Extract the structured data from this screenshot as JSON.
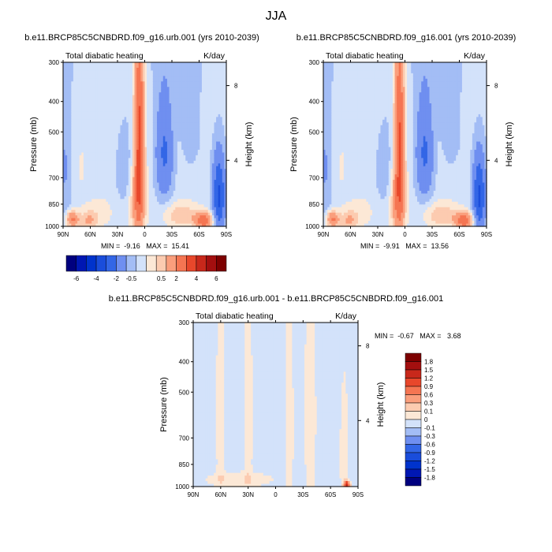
{
  "page_title": "JJA",
  "colors": {
    "neg": [
      "#00007f",
      "#0017b3",
      "#0033cc",
      "#1a4ddb",
      "#3366e6",
      "#6f8ff0",
      "#a3bdf5",
      "#d3e2fa"
    ],
    "pos": [
      "#fce8d6",
      "#fccbb0",
      "#fa9e7c",
      "#f57552",
      "#e8472b",
      "#c8281b",
      "#a30f0f",
      "#7d0000"
    ],
    "white": "#ffffff"
  },
  "chart_data": [
    {
      "id": "urb",
      "type": "heatmap",
      "title": "b.e11.BRCP85C5CNBDRD.f09_g16.urb.001 (yrs 2010-2039)",
      "left_label": "Total diabatic heating",
      "right_label": "K/day",
      "ylabel": "Pressure (mb)",
      "ylabel_right": "Height (km)",
      "x_ticks": [
        "90N",
        "60N",
        "30N",
        "0",
        "30S",
        "60S",
        "90S"
      ],
      "y_ticks": [
        "300",
        "400",
        "500",
        "700",
        "850",
        "1000"
      ],
      "y_right_ticks": [
        "8",
        "4"
      ],
      "min_label": "MIN =  -9.16   MAX =  15.41",
      "min": -9.16,
      "max": 15.41,
      "fields": [
        {
          "lat": 80,
          "p": 950,
          "sx": 5,
          "sy": 40,
          "a": 2.5
        },
        {
          "lat": 62,
          "p": 960,
          "sx": 7,
          "sy": 45,
          "a": 1.2
        },
        {
          "lat": 70,
          "p": 650,
          "sx": 6,
          "sy": 120,
          "a": 0.3
        },
        {
          "lat": 42,
          "p": 520,
          "sx": 7,
          "sy": 110,
          "a": 0.25
        },
        {
          "lat": 50,
          "p": 900,
          "sx": 12,
          "sy": 70,
          "a": 0.5
        },
        {
          "lat": 6,
          "p": 520,
          "sx": 4,
          "sy": 300,
          "a": 3.5
        },
        {
          "lat": 8,
          "p": 850,
          "sx": 6,
          "sy": 150,
          "a": 1.5
        },
        {
          "lat": -40,
          "p": 920,
          "sx": 14,
          "sy": 60,
          "a": 1.2
        },
        {
          "lat": -65,
          "p": 960,
          "sx": 7,
          "sy": 40,
          "a": 3.0
        },
        {
          "lat": -30,
          "p": 550,
          "sx": 8,
          "sy": 120,
          "a": 0.2
        },
        {
          "lat": -50,
          "p": 480,
          "sx": 10,
          "sy": 130,
          "a": -0.5
        },
        {
          "lat": -22,
          "p": 580,
          "sx": 7,
          "sy": 160,
          "a": -2.0
        },
        {
          "lat": -82,
          "p": 800,
          "sx": 5,
          "sy": 160,
          "a": -3.0
        },
        {
          "lat": 22,
          "p": 650,
          "sx": 8,
          "sy": 150,
          "a": -0.6
        },
        {
          "lat": 88,
          "p": 650,
          "sx": 6,
          "sy": 250,
          "a": -0.8
        },
        {
          "lat": 0,
          "p": 300,
          "sx": 90,
          "sy": 60,
          "a": -0.2
        }
      ],
      "bias": -0.25
    },
    {
      "id": "ctl",
      "type": "heatmap",
      "title": "b.e11.BRCP85C5CNBDRD.f09_g16.001 (yrs 2010-2039)",
      "left_label": "Total diabatic heating",
      "right_label": "K/day",
      "ylabel": "Pressure (mb)",
      "ylabel_right": "Height (km)",
      "x_ticks": [
        "90N",
        "60N",
        "30N",
        "0",
        "30S",
        "60S",
        "90S"
      ],
      "y_ticks": [
        "300",
        "400",
        "500",
        "700",
        "850",
        "1000"
      ],
      "y_right_ticks": [
        "8",
        "4"
      ],
      "min_label": "MIN =  -9.91   MAX =  13.56",
      "min": -9.91,
      "max": 13.56,
      "fields": [
        {
          "lat": 80,
          "p": 950,
          "sx": 5,
          "sy": 40,
          "a": 2.5
        },
        {
          "lat": 62,
          "p": 960,
          "sx": 7,
          "sy": 45,
          "a": 1.2
        },
        {
          "lat": 70,
          "p": 650,
          "sx": 6,
          "sy": 120,
          "a": 0.3
        },
        {
          "lat": 42,
          "p": 520,
          "sx": 7,
          "sy": 110,
          "a": 0.25
        },
        {
          "lat": 50,
          "p": 900,
          "sx": 12,
          "sy": 70,
          "a": 0.5
        },
        {
          "lat": 6,
          "p": 520,
          "sx": 4,
          "sy": 300,
          "a": 3.3
        },
        {
          "lat": 8,
          "p": 850,
          "sx": 6,
          "sy": 150,
          "a": 1.5
        },
        {
          "lat": -40,
          "p": 920,
          "sx": 14,
          "sy": 60,
          "a": 1.2
        },
        {
          "lat": -65,
          "p": 960,
          "sx": 7,
          "sy": 40,
          "a": 3.0
        },
        {
          "lat": -30,
          "p": 550,
          "sx": 8,
          "sy": 120,
          "a": 0.2
        },
        {
          "lat": -50,
          "p": 480,
          "sx": 10,
          "sy": 130,
          "a": -0.5
        },
        {
          "lat": -22,
          "p": 580,
          "sx": 7,
          "sy": 160,
          "a": -2.0
        },
        {
          "lat": -82,
          "p": 800,
          "sx": 5,
          "sy": 160,
          "a": -3.0
        },
        {
          "lat": 22,
          "p": 650,
          "sx": 8,
          "sy": 150,
          "a": -0.6
        },
        {
          "lat": 88,
          "p": 650,
          "sx": 6,
          "sy": 250,
          "a": -0.8
        },
        {
          "lat": 0,
          "p": 300,
          "sx": 90,
          "sy": 60,
          "a": -0.2
        }
      ],
      "bias": -0.25
    },
    {
      "id": "diff",
      "type": "heatmap",
      "title": "b.e11.BRCP85C5CNBDRD.f09_g16.urb.001 - b.e11.BRCP85C5CNBDRD.f09_g16.001",
      "left_label": "Total diabatic heating",
      "right_label": "K/day",
      "ylabel": "Pressure (mb)",
      "ylabel_right": "Height (km)",
      "x_ticks": [
        "90N",
        "60N",
        "30N",
        "0",
        "30S",
        "60S",
        "90S"
      ],
      "y_ticks": [
        "300",
        "400",
        "500",
        "700",
        "850",
        "1000"
      ],
      "y_right_ticks": [
        "8",
        "4"
      ],
      "min_label": "MIN =  -0.67   MAX =   3.68",
      "min": -0.67,
      "max": 3.68,
      "fields": [
        {
          "lat": 60,
          "p": 600,
          "sx": 3,
          "sy": 400,
          "a": 0.12
        },
        {
          "lat": 30,
          "p": 600,
          "sx": 3,
          "sy": 400,
          "a": 0.12
        },
        {
          "lat": -15,
          "p": 650,
          "sx": 3,
          "sy": 300,
          "a": 0.12
        },
        {
          "lat": -38,
          "p": 600,
          "sx": 4,
          "sy": 400,
          "a": 0.12
        },
        {
          "lat": -75,
          "p": 800,
          "sx": 3,
          "sy": 250,
          "a": 0.12
        },
        {
          "lat": 40,
          "p": 950,
          "sx": 25,
          "sy": 35,
          "a": 0.12
        },
        {
          "lat": -78,
          "p": 985,
          "sx": 2,
          "sy": 15,
          "a": 1.5
        }
      ],
      "bias": -0.04
    }
  ],
  "colorbars": [
    {
      "id": "top",
      "labels": [
        "-6",
        "-4",
        "-2",
        "-0.5",
        "0.5",
        "2",
        "4",
        "6"
      ]
    },
    {
      "id": "diff",
      "labels": [
        "1.8",
        "1.5",
        "1.2",
        "0.9",
        "0.6",
        "0.3",
        "0.1",
        "0",
        "-0.1",
        "-0.3",
        "-0.6",
        "-0.9",
        "-1.2",
        "-1.5",
        "-1.8"
      ]
    }
  ]
}
